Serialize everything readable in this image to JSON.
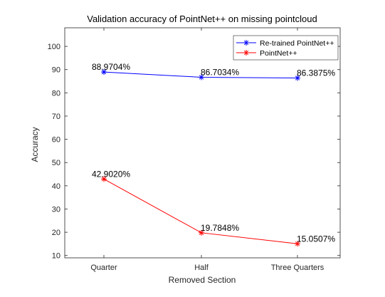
{
  "chart_data": {
    "type": "line",
    "title": "Validation accuracy of PointNet++ on missing pointcloud",
    "xlabel": "Removed Section",
    "ylabel": "Accuracy",
    "categories": [
      "Quarter",
      "Half",
      "Three Quarters"
    ],
    "ylim": [
      9,
      108
    ],
    "yticks": [
      10,
      20,
      30,
      40,
      50,
      60,
      70,
      80,
      90,
      100
    ],
    "grid": false,
    "legend_position": "top-right",
    "series": [
      {
        "name": "Re-trained PointNet++",
        "values": [
          88.9704,
          86.7034,
          86.3875
        ],
        "labels": [
          "88.9704%",
          "86.7034%",
          "86.3875%"
        ],
        "color": "#0000ff",
        "marker": "asterisk"
      },
      {
        "name": "PointNet++",
        "values": [
          42.902,
          19.7848,
          15.0507
        ],
        "labels": [
          "42.9020%",
          "19.7848%",
          "15.0507%"
        ],
        "color": "#ff0000",
        "marker": "asterisk"
      }
    ]
  }
}
